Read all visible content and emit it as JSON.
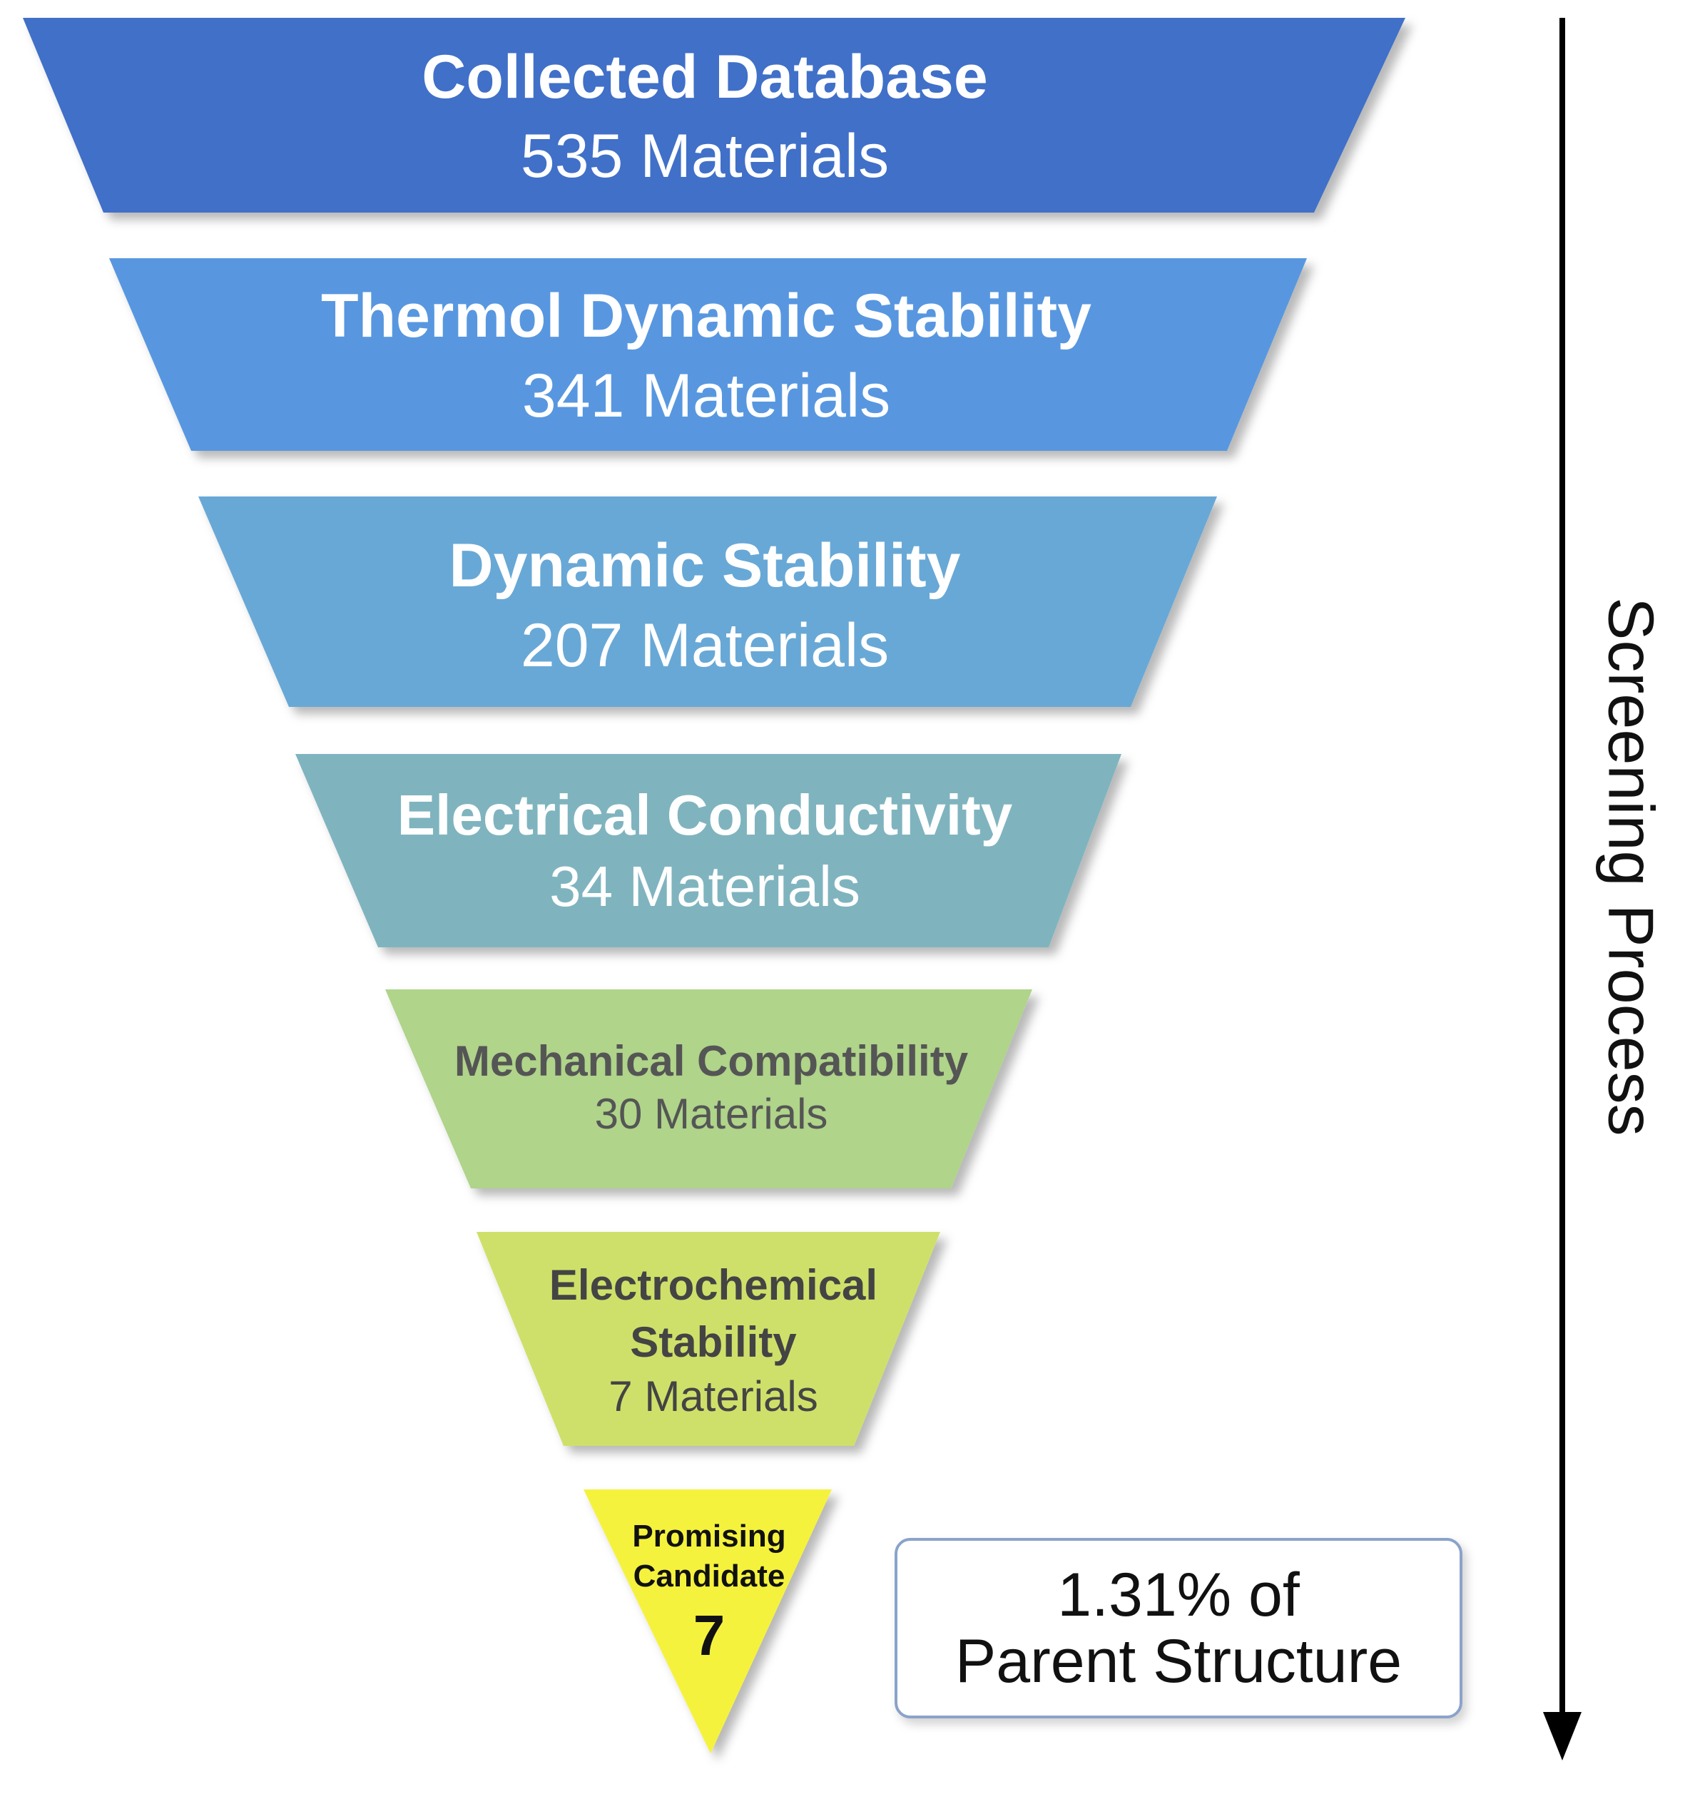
{
  "funnel": {
    "stages": [
      {
        "title": "Collected Database",
        "count_text": "535 Materials",
        "color": "#4070c8"
      },
      {
        "title": "Thermol Dynamic Stability",
        "count_text": "341 Materials",
        "color": "#5897e0"
      },
      {
        "title": "Dynamic Stability",
        "count_text": "207 Materials",
        "color": "#68a8d6"
      },
      {
        "title": "Electrical Conductivity",
        "count_text": "34 Materials",
        "color": "#7fb4bf"
      },
      {
        "title": "Mechanical Compatibility",
        "count_text": "30 Materials",
        "color": "#afd48a"
      },
      {
        "title_line1": "Electrochemical",
        "title_line2": "Stability",
        "count_text": "7 Materials",
        "color": "#cfe06a"
      }
    ],
    "final": {
      "line1": "Promising",
      "line2": "Candidate",
      "count": "7",
      "color": "#f5f23c"
    }
  },
  "percentage_box": {
    "line1": "1.31% of",
    "line2": "Parent Structure",
    "border_color": "#8aa3c9"
  },
  "side_label": "Screening Process"
}
